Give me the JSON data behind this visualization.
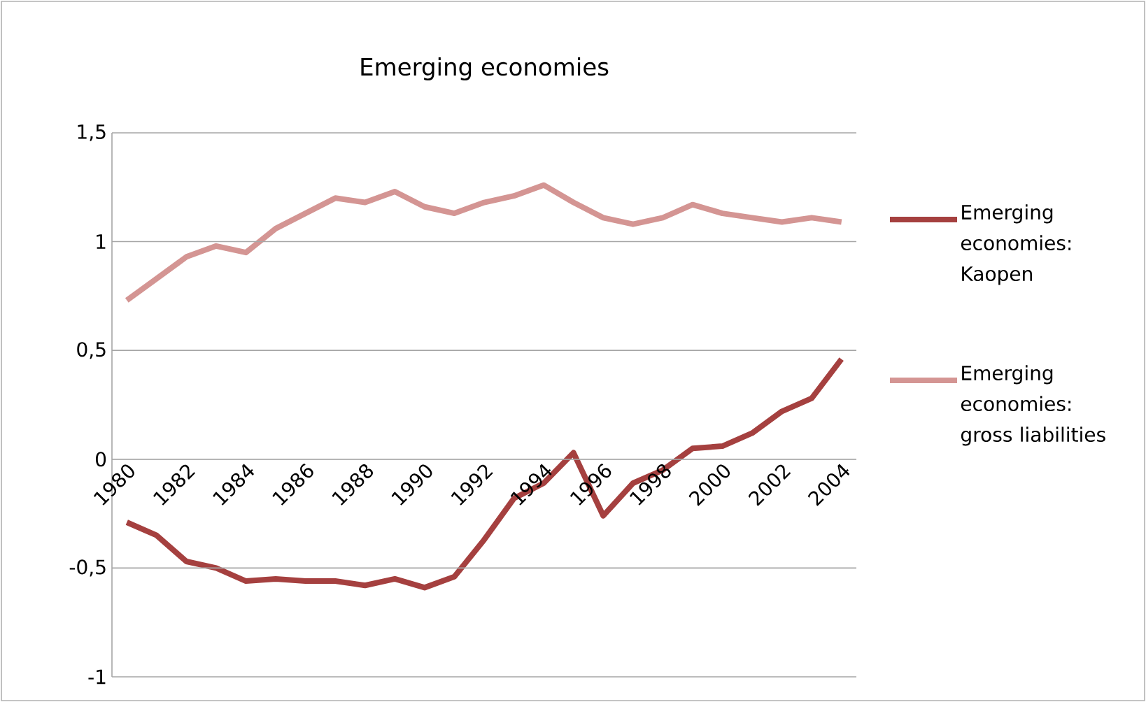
{
  "chart_data": {
    "type": "line",
    "title": "Emerging economies",
    "categories": [
      "1980",
      null,
      "1982",
      null,
      "1984",
      null,
      "1986",
      null,
      "1988",
      null,
      "1990",
      null,
      "1992",
      null,
      "1994",
      null,
      "1996",
      null,
      "1998",
      null,
      "2000",
      null,
      "2002",
      null,
      "2004"
    ],
    "series": [
      {
        "name": "Emerging economies: Kaopen",
        "color": "#a5403f",
        "values": [
          -0.29,
          -0.35,
          -0.47,
          -0.5,
          -0.56,
          -0.55,
          -0.56,
          -0.56,
          -0.58,
          -0.55,
          -0.59,
          -0.54,
          -0.37,
          -0.18,
          -0.11,
          0.03,
          -0.26,
          -0.11,
          -0.05,
          0.05,
          0.06,
          0.12,
          0.22,
          0.28,
          0.46
        ]
      },
      {
        "name": "Emerging economies: gross liabilities",
        "color": "#d49593",
        "values": [
          0.73,
          0.83,
          0.93,
          0.98,
          0.95,
          1.06,
          1.13,
          1.2,
          1.18,
          1.23,
          1.16,
          1.13,
          1.18,
          1.21,
          1.26,
          1.18,
          1.11,
          1.08,
          1.11,
          1.17,
          1.13,
          1.11,
          1.09,
          1.11,
          1.09
        ]
      }
    ],
    "ylim": [
      -1,
      1.5
    ],
    "yticks": [
      -1,
      {
        "value": -0.5,
        "label": "-0,5"
      },
      0,
      {
        "value": 0.5,
        "label": "0,5"
      },
      1,
      {
        "value": 1.5,
        "label": "1,5"
      }
    ],
    "grid": "y",
    "legend": "right",
    "marker": "none",
    "line_style": "solid"
  }
}
